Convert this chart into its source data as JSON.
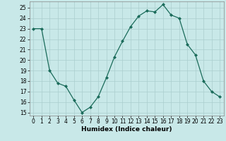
{
  "x": [
    0,
    1,
    2,
    3,
    4,
    5,
    6,
    7,
    8,
    9,
    10,
    11,
    12,
    13,
    14,
    15,
    16,
    17,
    18,
    19,
    20,
    21,
    22,
    23
  ],
  "y": [
    23.0,
    23.0,
    19.0,
    17.8,
    17.5,
    16.2,
    15.0,
    15.5,
    16.5,
    18.3,
    20.3,
    21.8,
    23.2,
    24.2,
    24.7,
    24.6,
    25.3,
    24.3,
    24.0,
    21.5,
    20.5,
    18.0,
    17.0,
    16.5
  ],
  "line_color": "#1a6b5a",
  "marker": "D",
  "marker_size": 2.0,
  "bg_color": "#c8e8e8",
  "grid_color": "#aacece",
  "xlabel": "Humidex (Indice chaleur)",
  "xlabel_fontsize": 6.5,
  "tick_fontsize": 5.5,
  "ylim": [
    14.7,
    25.6
  ],
  "xlim": [
    -0.5,
    23.5
  ],
  "yticks": [
    15,
    16,
    17,
    18,
    19,
    20,
    21,
    22,
    23,
    24,
    25
  ],
  "xticks": [
    0,
    1,
    2,
    3,
    4,
    5,
    6,
    7,
    8,
    9,
    10,
    11,
    12,
    13,
    14,
    15,
    16,
    17,
    18,
    19,
    20,
    21,
    22,
    23
  ]
}
